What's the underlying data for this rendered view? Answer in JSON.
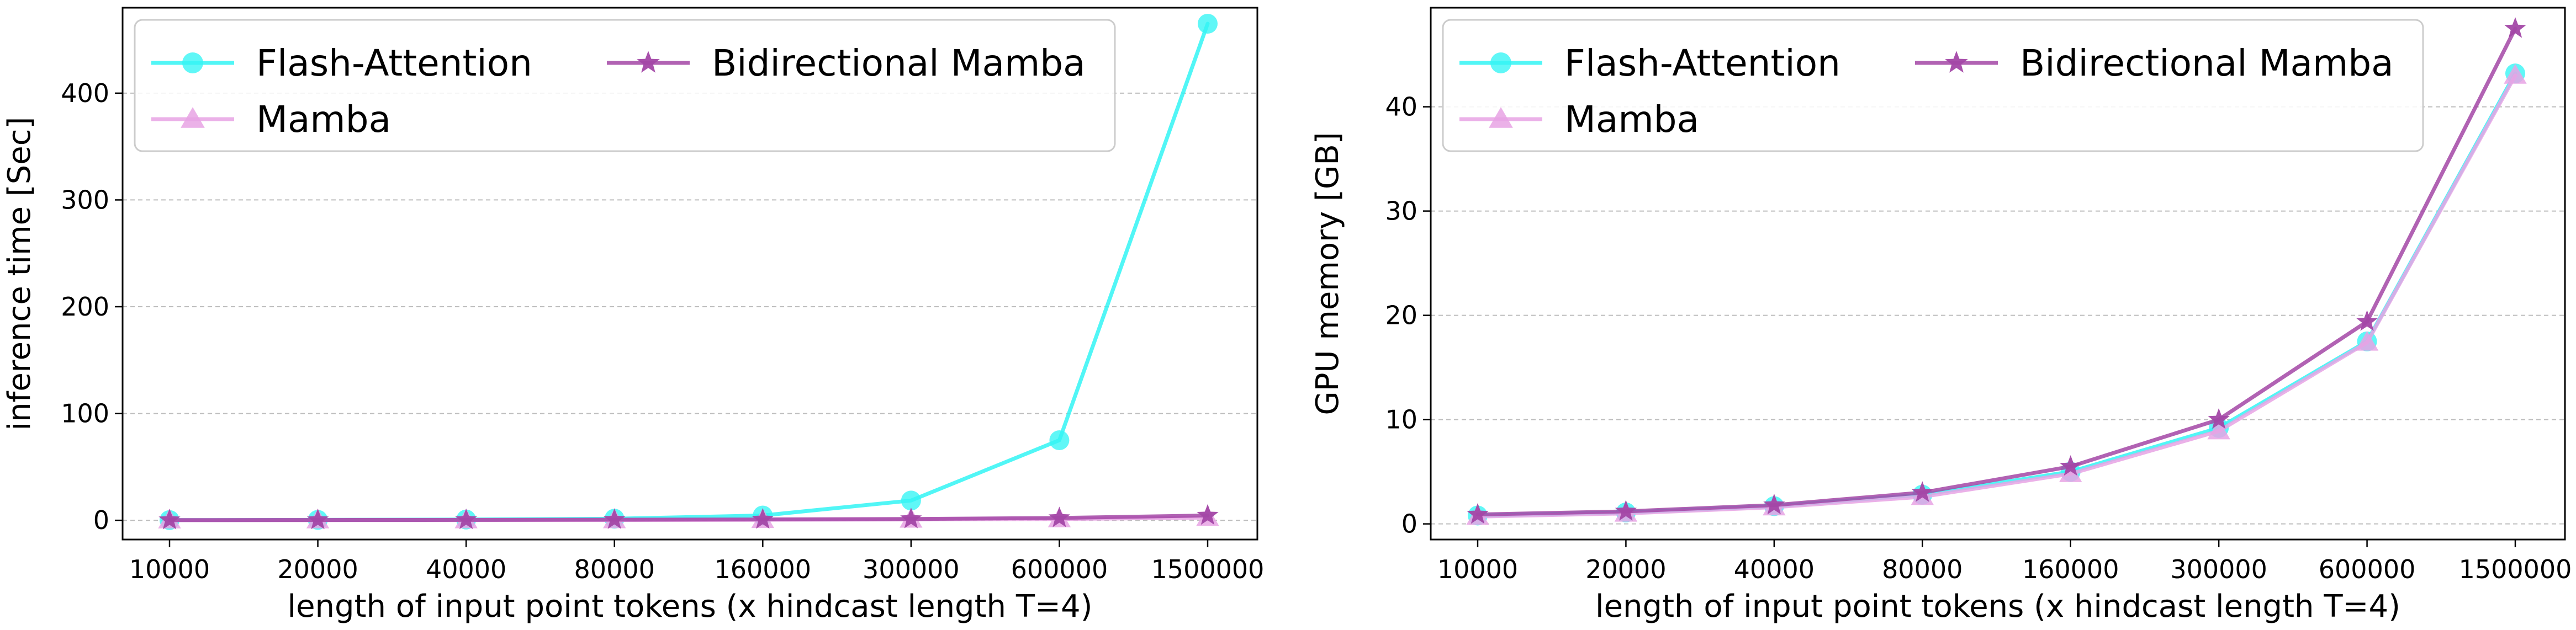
{
  "chart_data": [
    {
      "type": "line",
      "title": "",
      "xlabel": "length of input point tokens (x hindcast length T=4)",
      "ylabel": "inference time [Sec]",
      "categories": [
        "10000",
        "20000",
        "40000",
        "80000",
        "160000",
        "300000",
        "600000",
        "1500000"
      ],
      "x": [
        10000,
        20000,
        40000,
        80000,
        160000,
        300000,
        600000,
        1500000
      ],
      "ylim": [
        -18,
        480
      ],
      "yticks": [
        0,
        100,
        200,
        300,
        400
      ],
      "grid": "y-dashed",
      "legend": {
        "placement": "top-left",
        "columns": 2
      },
      "series": [
        {
          "name": "Flash-Attention",
          "color": "#33f5f5",
          "marker": "circle",
          "values": [
            0.2,
            0.4,
            0.7,
            1.5,
            4.5,
            18.5,
            75,
            465
          ]
        },
        {
          "name": "Mamba",
          "color": "#e8a3e4",
          "marker": "triangle",
          "values": [
            0.1,
            0.15,
            0.2,
            0.3,
            0.5,
            0.8,
            1.2,
            2.5
          ]
        },
        {
          "name": "Bidirectional Mamba",
          "color": "#a347a6",
          "marker": "star",
          "values": [
            0.2,
            0.3,
            0.4,
            0.6,
            0.8,
            1.2,
            2.2,
            4.5
          ]
        }
      ]
    },
    {
      "type": "line",
      "title": "",
      "xlabel": "length of input point tokens (x hindcast length T=4)",
      "ylabel": "GPU memory [GB]",
      "categories": [
        "10000",
        "20000",
        "40000",
        "80000",
        "160000",
        "300000",
        "600000",
        "1500000"
      ],
      "x": [
        10000,
        20000,
        40000,
        80000,
        160000,
        300000,
        600000,
        1500000
      ],
      "ylim": [
        -1.5,
        49.5
      ],
      "yticks": [
        0,
        10,
        20,
        30,
        40
      ],
      "grid": "y-dashed",
      "legend": {
        "placement": "top-left",
        "columns": 2
      },
      "series": [
        {
          "name": "Flash-Attention",
          "color": "#33f5f5",
          "marker": "circle",
          "values": [
            0.8,
            1.1,
            1.7,
            2.8,
            5.0,
            9.2,
            17.5,
            43.2
          ]
        },
        {
          "name": "Mamba",
          "color": "#e8a3e4",
          "marker": "triangle",
          "values": [
            0.7,
            1.0,
            1.6,
            2.6,
            4.8,
            8.9,
            17.4,
            43.0
          ]
        },
        {
          "name": "Bidirectional Mamba",
          "color": "#a347a6",
          "marker": "star",
          "values": [
            0.9,
            1.2,
            1.8,
            3.0,
            5.5,
            10.0,
            19.4,
            47.5
          ]
        }
      ]
    }
  ]
}
